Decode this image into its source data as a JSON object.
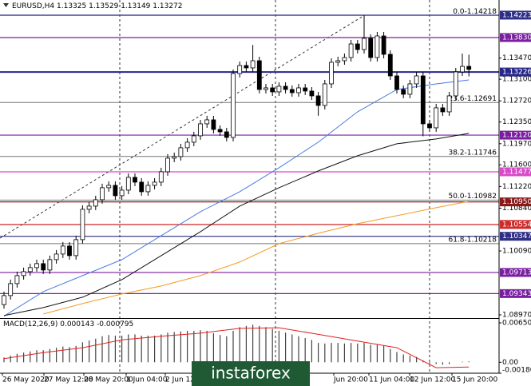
{
  "header": {
    "symbol": "EURUSD,H4",
    "open": 1.13325,
    "high": 1.13529,
    "low": 1.13149,
    "close": 1.13272
  },
  "watermark": "instaforex",
  "x_labels": [
    "26 May 2020",
    "27 May 12:00",
    "28 May 20:00",
    "1 Jun 04:00",
    "2 Jun 12:00",
    "Jun 20:00",
    "11 Jun 04:00",
    "12 Jun 12:00",
    "15 Jun 20:00"
  ],
  "chart_data": [
    {
      "type": "candlestick",
      "ylim": [
        1.08928,
        1.14488
      ],
      "yticks": [
        {
          "value": 1.1347,
          "label": "1.13470"
        },
        {
          "value": 1.131,
          "label": "1.13100"
        },
        {
          "value": 1.1272,
          "label": "1.12720"
        },
        {
          "value": 1.1235,
          "label": "1.12350"
        },
        {
          "value": 1.1197,
          "label": "1.11970"
        },
        {
          "value": 1.116,
          "label": "1.11600"
        },
        {
          "value": 1.1122,
          "label": "1.11220"
        },
        {
          "value": 1.1084,
          "label": "1.10840"
        },
        {
          "value": 1.1009,
          "label": "1.10090"
        },
        {
          "value": 1.0897,
          "label": "1.08970"
        }
      ],
      "levels": [
        {
          "value": 1.14223,
          "color": "#2e2e86"
        },
        {
          "value": 1.1383,
          "label": "1.13830",
          "color": "#7a1fa0"
        },
        {
          "value": 1.13226,
          "color": "#27278a"
        },
        {
          "value": 1.1212,
          "label": "1.12120",
          "color": "#7a1fa0"
        },
        {
          "value": 1.11477,
          "color": "#d84ac8"
        },
        {
          "value": 1.1095,
          "label": "1.10950",
          "color": "#8b1a1a"
        },
        {
          "value": 1.10554,
          "color": "#d02a2a"
        },
        {
          "value": 1.10347,
          "color": "#2e2e86"
        },
        {
          "value": 1.09713,
          "color": "#7a1fa0"
        },
        {
          "value": 1.09343,
          "color": "#7a1fa0"
        }
      ],
      "fib_levels": [
        {
          "value": 1.14218,
          "label": "0.0-1.14218"
        },
        {
          "value": 1.12691,
          "label": "23.6-1.12691"
        },
        {
          "value": 1.11746,
          "label": "38.2-1.11746"
        },
        {
          "value": 1.10982,
          "label": "50.0-1.10982"
        },
        {
          "value": 1.10218,
          "label": "61.8-1.10218"
        }
      ],
      "open": [
        1.0915,
        1.09308,
        1.09518,
        1.09658,
        1.09728,
        1.09798,
        1.09868,
        1.09756,
        1.09938,
        1.10036,
        1.10176,
        1.10008,
        1.10288,
        1.1082,
        1.10876,
        1.10988,
        1.11198,
        1.1124,
        1.11058,
        1.11156,
        1.1138,
        1.11296,
        1.11128,
        1.1124,
        1.11296,
        1.11478,
        1.11716,
        1.11744,
        1.11898,
        1.11996,
        1.12108,
        1.12318,
        1.12388,
        1.1222,
        1.12178,
        1.1208,
        1.132,
        1.1334,
        1.13298,
        1.13424,
        1.1292,
        1.12948,
        1.12878,
        1.12976,
        1.1292,
        1.12864,
        1.12948,
        1.12892,
        1.12808,
        1.1264,
        1.13018,
        1.13396,
        1.13424,
        1.1348,
        1.13718,
        1.1362,
        1.13816,
        1.1348,
        1.13858,
        1.13536,
        1.13158,
        1.1292,
        1.12836,
        1.13018,
        1.13158,
        1.12318,
        1.12248,
        1.12598,
        1.12528,
        1.12808,
        1.13228,
        1.13325
      ],
      "high": [
        1.09378,
        1.09588,
        1.09728,
        1.09798,
        1.09868,
        1.09938,
        1.09938,
        1.10008,
        1.10106,
        1.10246,
        1.10246,
        1.10358,
        1.1089,
        1.10946,
        1.11058,
        1.11268,
        1.1131,
        1.1131,
        1.11226,
        1.1145,
        1.1145,
        1.11366,
        1.1131,
        1.11366,
        1.11548,
        1.11786,
        1.11814,
        1.11968,
        1.12066,
        1.12178,
        1.12388,
        1.12458,
        1.12458,
        1.1229,
        1.12248,
        1.1327,
        1.1341,
        1.1341,
        1.137,
        1.13494,
        1.13018,
        1.13018,
        1.13046,
        1.13046,
        1.1299,
        1.13018,
        1.13018,
        1.12962,
        1.12878,
        1.13088,
        1.13466,
        1.13494,
        1.1355,
        1.13788,
        1.13788,
        1.14223,
        1.13886,
        1.13928,
        1.13928,
        1.13606,
        1.13228,
        1.1299,
        1.13088,
        1.13228,
        1.13228,
        1.12388,
        1.12668,
        1.12668,
        1.12878,
        1.13298,
        1.1355,
        1.13529
      ],
      "low": [
        1.0908,
        1.09238,
        1.09448,
        1.09588,
        1.09658,
        1.09728,
        1.09686,
        1.09686,
        1.09868,
        1.09966,
        1.09938,
        1.09938,
        1.10218,
        1.1075,
        1.10806,
        1.10918,
        1.11128,
        1.10988,
        1.10988,
        1.11086,
        1.11226,
        1.11058,
        1.11058,
        1.1117,
        1.11226,
        1.11408,
        1.11646,
        1.11674,
        1.11828,
        1.11926,
        1.12038,
        1.12248,
        1.1215,
        1.12108,
        1.1201,
        1.1201,
        1.1313,
        1.13228,
        1.13228,
        1.1285,
        1.1285,
        1.12808,
        1.12808,
        1.1285,
        1.12794,
        1.12794,
        1.12822,
        1.12738,
        1.1246,
        1.1257,
        1.12948,
        1.13326,
        1.13354,
        1.1341,
        1.1355,
        1.1355,
        1.1341,
        1.1341,
        1.13466,
        1.13088,
        1.1285,
        1.12766,
        1.12766,
        1.12948,
        1.121,
        1.12178,
        1.12178,
        1.12458,
        1.12458,
        1.12738,
        1.13158,
        1.13149
      ],
      "close": [
        1.09308,
        1.09518,
        1.09658,
        1.09728,
        1.09798,
        1.09868,
        1.09756,
        1.09938,
        1.10036,
        1.10176,
        1.10008,
        1.10288,
        1.1082,
        1.10876,
        1.10988,
        1.11198,
        1.1124,
        1.11058,
        1.11156,
        1.1138,
        1.11296,
        1.11128,
        1.1124,
        1.11296,
        1.11478,
        1.11716,
        1.11744,
        1.11898,
        1.11996,
        1.12108,
        1.12318,
        1.12388,
        1.1222,
        1.12178,
        1.1208,
        1.132,
        1.1334,
        1.13298,
        1.13424,
        1.1292,
        1.12948,
        1.12878,
        1.12976,
        1.1292,
        1.12864,
        1.12948,
        1.12892,
        1.12808,
        1.1264,
        1.13018,
        1.13396,
        1.13424,
        1.1348,
        1.13718,
        1.1362,
        1.13816,
        1.1348,
        1.13858,
        1.13536,
        1.13158,
        1.1292,
        1.12836,
        1.13018,
        1.13158,
        1.12318,
        1.12248,
        1.12598,
        1.12528,
        1.12808,
        1.13228,
        1.13325,
        1.13272
      ],
      "ma_x": [
        0,
        6,
        12,
        18,
        24,
        30,
        36,
        42,
        48,
        54,
        60,
        66,
        71
      ],
      "series": [
        {
          "color": "#4a7be0",
          "values": [
            1.08948,
            1.09378,
            1.09658,
            1.09938,
            1.10358,
            1.10778,
            1.11128,
            1.11548,
            1.11996,
            1.12528,
            1.1292,
            1.13018,
            1.13088
          ]
        },
        {
          "color": "#111111",
          "values": [
            1.08958,
            1.09098,
            1.0928,
            1.09588,
            1.10008,
            1.10428,
            1.10876,
            1.11198,
            1.11492,
            1.11758,
            1.11968,
            1.12052,
            1.1215
          ]
        },
        {
          "color": "#f59a23",
          "values": [
            null,
            1.08986,
            1.09168,
            1.09336,
            1.09476,
            1.09658,
            1.09896,
            1.10218,
            1.104,
            1.10568,
            1.10708,
            1.10848,
            1.1096
          ]
        }
      ]
    },
    {
      "type": "macd",
      "label": "MACD(12,26,9)",
      "main_value": 0.000143,
      "signal_value": -0.000795,
      "ylim": [
        -0.001805,
        0.007033
      ],
      "yticks": [
        0.006502,
        {
          "value": 0,
          "label": "0.00"
        },
        -0.001805
      ],
      "values": [
        0.0008,
        0.0011,
        0.0014,
        0.0016,
        0.0018,
        0.002,
        0.002,
        0.0022,
        0.0024,
        0.0026,
        0.0025,
        0.0027,
        0.0033,
        0.0036,
        0.0039,
        0.0043,
        0.0045,
        0.0044,
        0.0044,
        0.0046,
        0.0046,
        0.0044,
        0.0044,
        0.0044,
        0.0046,
        0.0049,
        0.005,
        0.0051,
        0.0052,
        0.0052,
        0.0053,
        0.0052,
        0.0048,
        0.0045,
        0.0043,
        0.0052,
        0.0058,
        0.006,
        0.0062,
        0.006,
        0.0058,
        0.0055,
        0.0052,
        0.0049,
        0.0046,
        0.0043,
        0.004,
        0.0037,
        0.0032,
        0.0031,
        0.0032,
        0.0032,
        0.0031,
        0.0032,
        0.0031,
        0.0032,
        0.0029,
        0.003,
        0.0027,
        0.0022,
        0.0017,
        0.0013,
        0.0011,
        0.0009,
        0.0003,
        -0.0002,
        -0.0003,
        -0.0004,
        -0.0003,
        0,
        0.0001,
        0.000143
      ],
      "signal_x": [
        0,
        6,
        12,
        18,
        24,
        30,
        36,
        42,
        48,
        54,
        60,
        66,
        71
      ],
      "signal": {
        "color": "#e02020",
        "values": [
          0.0006,
          0.0016,
          0.0024,
          0.0037,
          0.0043,
          0.0048,
          0.0056,
          0.0057,
          0.0046,
          0.0035,
          0.0024,
          -0.0009,
          -0.000795
        ]
      }
    }
  ]
}
